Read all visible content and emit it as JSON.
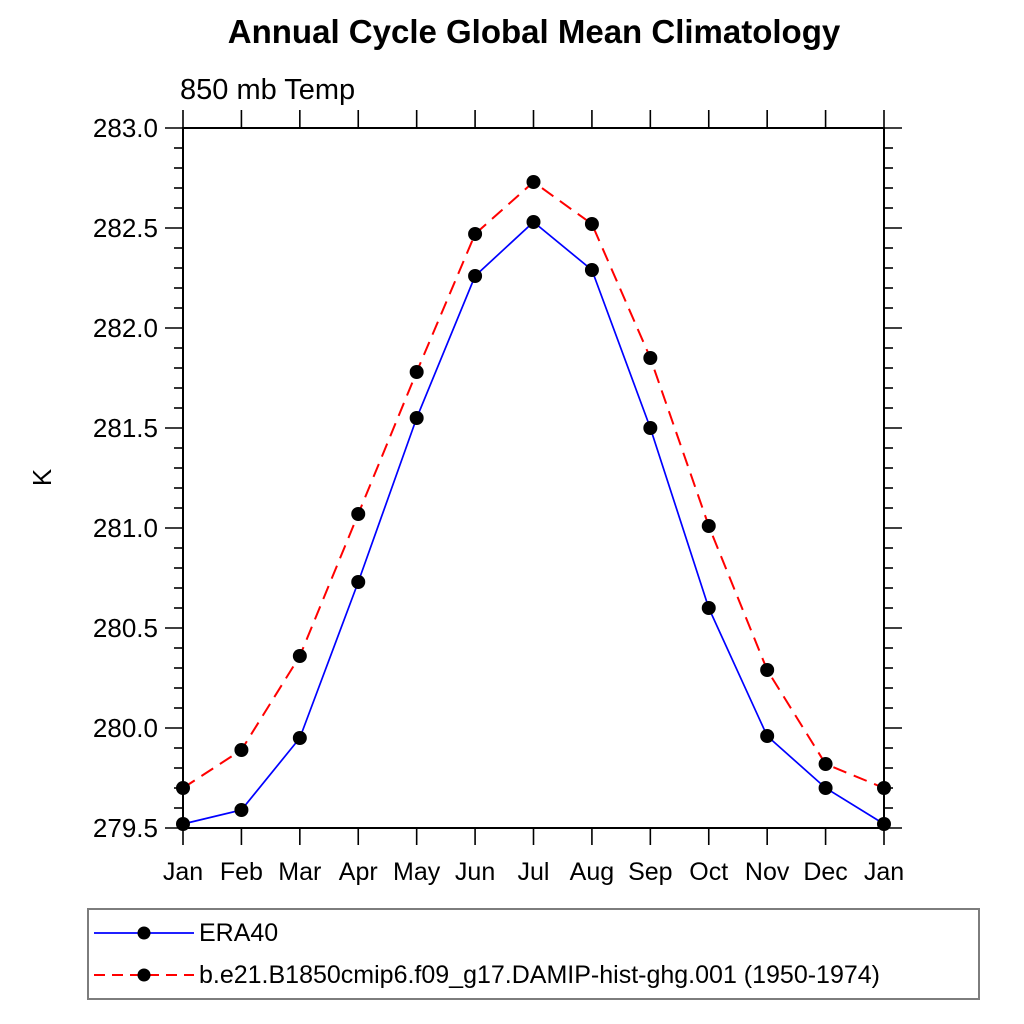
{
  "chart": {
    "title": "Annual Cycle Global Mean Climatology",
    "subtitle": "850 mb Temp",
    "ylabel": "K"
  },
  "chart_data": {
    "type": "line",
    "title": "Annual Cycle Global Mean Climatology",
    "subtitle": "850 mb Temp",
    "xlabel": "",
    "ylabel": "K",
    "categories": [
      "Jan",
      "Feb",
      "Mar",
      "Apr",
      "May",
      "Jun",
      "Jul",
      "Aug",
      "Sep",
      "Oct",
      "Nov",
      "Dec",
      "Jan"
    ],
    "series": [
      {
        "name": "ERA40",
        "color": "#0000ff",
        "line_style": "solid",
        "marker": "filled-circle",
        "marker_color": "#000000",
        "values": [
          279.52,
          279.59,
          279.95,
          280.73,
          281.55,
          282.26,
          282.53,
          282.29,
          281.5,
          280.6,
          279.96,
          279.7,
          279.52
        ]
      },
      {
        "name": "b.e21.B1850cmip6.f09_g17.DAMIP-hist-ghg.001 (1950-1974)",
        "color": "#ff0000",
        "line_style": "dashed",
        "marker": "filled-circle",
        "marker_color": "#000000",
        "values": [
          279.7,
          279.89,
          280.36,
          281.07,
          281.78,
          282.47,
          282.73,
          282.52,
          281.85,
          281.01,
          280.29,
          279.82,
          279.7
        ]
      }
    ],
    "ylim": [
      279.5,
      283.0
    ],
    "yticks": [
      "279.5",
      "280.0",
      "280.5",
      "281.0",
      "281.5",
      "282.0",
      "282.5",
      "283.0"
    ],
    "ytick_step": 0.5,
    "yminor_step": 0.1,
    "grid": false,
    "frame": "box-with-outward-ticks",
    "legend_position": "bottom-left"
  }
}
